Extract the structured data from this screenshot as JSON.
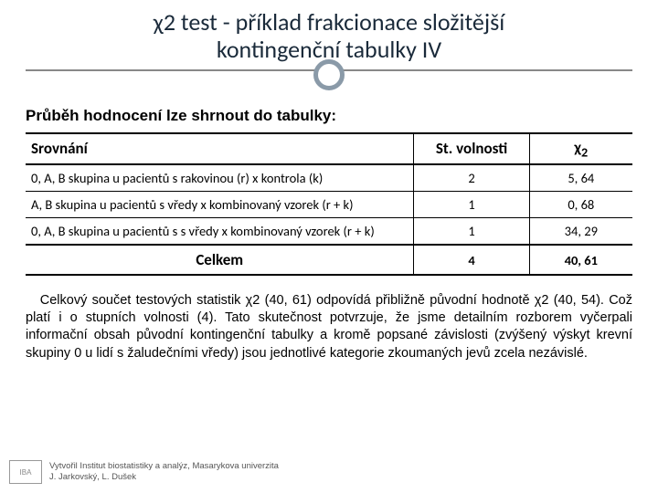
{
  "title_line1_prefix": "χ",
  "title_line1_rest": "2 test - příklad frakcionace složitější",
  "title_line2": "kontingenční tabulky IV",
  "intro": "Průběh hodnocení lze shrnout do tabulky:",
  "table": {
    "col1_header": "Srovnání",
    "col2_header": "St. volnosti",
    "col3_header_prefix": "χ",
    "col3_header_sub": "2",
    "rows": [
      {
        "srovnani": "0, A, B skupina u pacientů s rakovinou (r) x kontrola (k)",
        "df": "2",
        "chi2": "5, 64"
      },
      {
        "srovnani": "A, B skupina u pacientů s vředy x kombinovaný vzorek (r + k)",
        "df": "1",
        "chi2": "0, 68"
      },
      {
        "srovnani": "0, A, B skupina u pacientů s s vředy x kombinovaný vzorek (r + k)",
        "df": "1",
        "chi2": "34, 29"
      }
    ],
    "total_label": "Celkem",
    "total_df": "4",
    "total_chi2": "40, 61"
  },
  "paragraph_part1": "   Celkový součet testových statistik ",
  "paragraph_chi1": "χ",
  "paragraph_part2": "2 (40, 61) odpovídá přibližně původní hodnotě ",
  "paragraph_chi2": "χ",
  "paragraph_part3": "2 (40, 54). Což platí i o stupních volnosti (4). Tato skutečnost potvrzuje, že jsme detailním rozborem vyčerpali informační obsah původní kontingenční tabulky a kromě popsané závislosti (zvýšený výskyt krevní skupiny 0 u lidí s žaludečními vředy) jsou jednotlivé kategorie zkoumaných jevů zcela nezávislé.",
  "credit_line1": "Vytvořil Institut biostatistiky a analýz, Masarykova univerzita",
  "credit_line2": "J. Jarkovský, L. Dušek",
  "logo_text": "IBA"
}
